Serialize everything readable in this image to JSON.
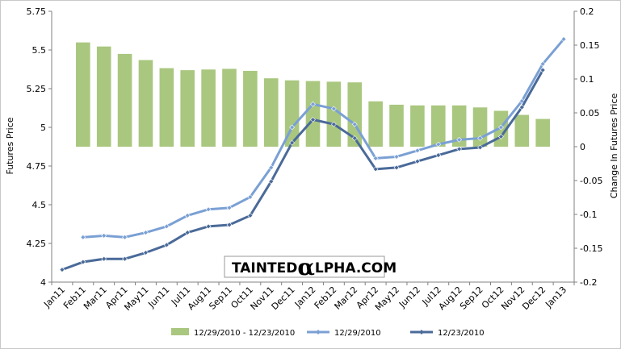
{
  "chart_data": {
    "type": "bar+line",
    "title": "",
    "categories": [
      "Jan11",
      "Feb11",
      "Mar11",
      "Apr11",
      "May11",
      "Jun11",
      "Jul11",
      "Aug11",
      "Sep11",
      "Oct11",
      "Nov11",
      "Dec11",
      "Jan12",
      "Feb12",
      "Mar12",
      "Apr12",
      "May12",
      "Jun12",
      "Jul12",
      "Aug12",
      "Sep12",
      "Oct12",
      "Nov12",
      "Dec12",
      "Jan13"
    ],
    "y_left": {
      "label": "Futures Price",
      "min": 4,
      "max": 5.75,
      "ticks": [
        4,
        4.25,
        4.5,
        4.75,
        5,
        5.25,
        5.5,
        5.75
      ],
      "tick_labels": [
        "4",
        "4.25",
        "4.5",
        "4.75",
        "5",
        "5.25",
        "5.5",
        "5.75"
      ]
    },
    "y_right": {
      "label": "Change In Futures Price",
      "min": -0.2,
      "max": 0.2,
      "ticks": [
        -0.2,
        -0.15,
        -0.1,
        -0.05,
        0,
        0.05,
        0.1,
        0.15,
        0.2
      ],
      "tick_labels": [
        "-0.2",
        "-0.15",
        "-0.1",
        "-0.05",
        "0",
        "0.05",
        "0.1",
        "0.15",
        "0.2"
      ]
    },
    "series": [
      {
        "name": "12/29/2010  - 12/23/2010",
        "kind": "bar",
        "axis": "right",
        "color": "#a9c77f",
        "values": [
          null,
          0.154,
          0.148,
          0.137,
          0.128,
          0.116,
          0.113,
          0.114,
          0.115,
          0.112,
          0.101,
          0.098,
          0.097,
          0.096,
          0.095,
          0.067,
          0.062,
          0.061,
          0.061,
          0.061,
          0.058,
          0.053,
          0.047,
          0.041,
          null
        ]
      },
      {
        "name": "12/29/2010",
        "kind": "line",
        "axis": "left",
        "color": "#7aa0d4",
        "values": [
          null,
          4.29,
          4.3,
          4.29,
          4.32,
          4.36,
          4.43,
          4.47,
          4.48,
          4.55,
          4.74,
          5.0,
          5.15,
          5.12,
          5.02,
          4.8,
          4.81,
          4.85,
          4.89,
          4.92,
          4.93,
          5.0,
          5.17,
          5.41,
          5.57
        ]
      },
      {
        "name": "12/23/2010",
        "kind": "line",
        "axis": "left",
        "color": "#4a6a99",
        "values": [
          4.08,
          4.13,
          4.15,
          4.15,
          4.19,
          4.24,
          4.32,
          4.36,
          4.37,
          4.43,
          4.65,
          4.9,
          5.05,
          5.02,
          4.93,
          4.73,
          4.74,
          4.78,
          4.82,
          4.86,
          4.87,
          4.94,
          5.13,
          5.37,
          null
        ]
      }
    ],
    "legend": {
      "position": "bottom"
    },
    "grid": false
  },
  "watermark": {
    "part1": "TAINTED",
    "glyph": "α",
    "part2": "LPHA.COM"
  }
}
